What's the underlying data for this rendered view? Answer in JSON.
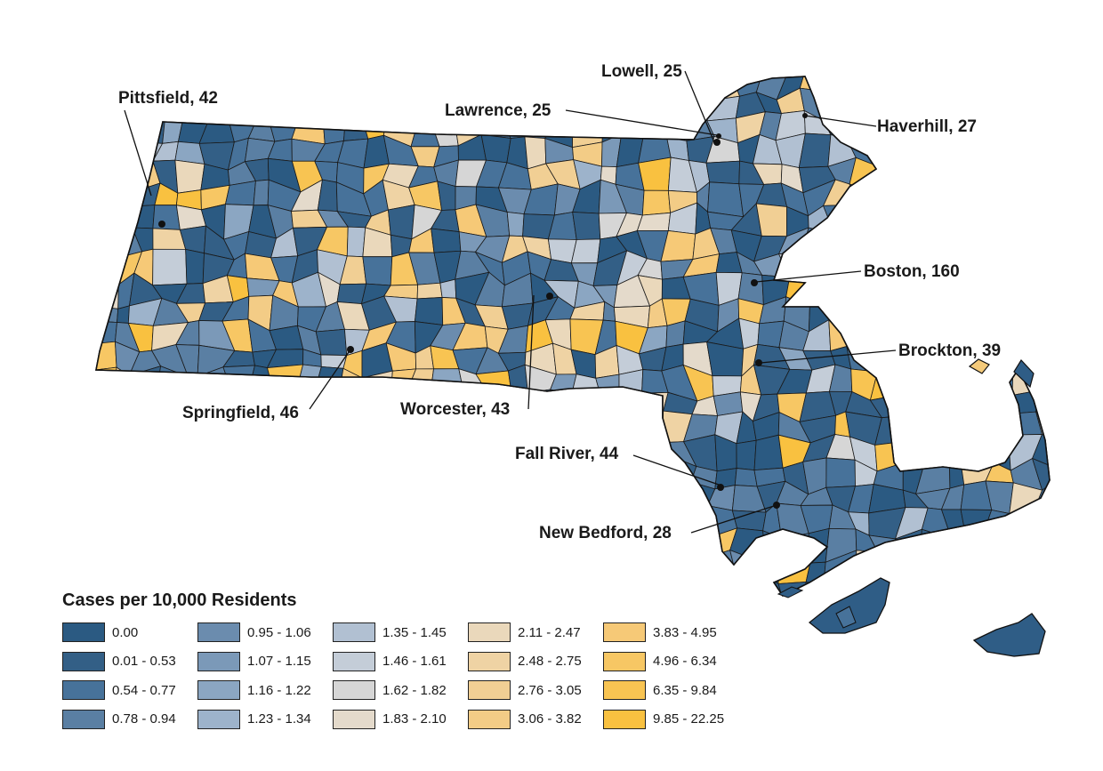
{
  "legend": {
    "title": "Cases per 10,000 Residents",
    "classes": [
      {
        "label": "0.00",
        "color": "#2b5a82"
      },
      {
        "label": "0.01 - 0.53",
        "color": "#335f86"
      },
      {
        "label": "0.54 - 0.77",
        "color": "#47729a"
      },
      {
        "label": "0.78 - 0.94",
        "color": "#5a7fa3"
      },
      {
        "label": "0.95 - 1.06",
        "color": "#6b8cae"
      },
      {
        "label": "1.07 - 1.15",
        "color": "#7b99b8"
      },
      {
        "label": "1.16 - 1.22",
        "color": "#8ba6c2"
      },
      {
        "label": "1.23 - 1.34",
        "color": "#9db3cb"
      },
      {
        "label": "1.35 - 1.45",
        "color": "#b1c0d2"
      },
      {
        "label": "1.46 - 1.61",
        "color": "#c4cdd8"
      },
      {
        "label": "1.62 - 1.82",
        "color": "#d6d6d6"
      },
      {
        "label": "1.83 - 2.10",
        "color": "#e4dacb"
      },
      {
        "label": "2.11 - 2.47",
        "color": "#ead8bb"
      },
      {
        "label": "2.48 - 2.75",
        "color": "#efd3a4"
      },
      {
        "label": "2.76 - 3.05",
        "color": "#f1cf94"
      },
      {
        "label": "3.06 - 3.82",
        "color": "#f3cc86"
      },
      {
        "label": "3.83 - 4.95",
        "color": "#f6c977"
      },
      {
        "label": "4.96 - 6.34",
        "color": "#f7c764"
      },
      {
        "label": "6.35 - 9.84",
        "color": "#f8c452"
      },
      {
        "label": "9.85 - 22.25",
        "color": "#f9c140"
      }
    ]
  },
  "cities": [
    {
      "id": "pittsfield",
      "label": "Pittsfield, 42"
    },
    {
      "id": "lowell",
      "label": "Lowell, 25"
    },
    {
      "id": "lawrence",
      "label": "Lawrence, 25"
    },
    {
      "id": "haverhill",
      "label": "Haverhill, 27"
    },
    {
      "id": "boston",
      "label": "Boston, 160"
    },
    {
      "id": "brockton",
      "label": "Brockton, 39"
    },
    {
      "id": "springfield",
      "label": "Springfield, 46"
    },
    {
      "id": "worcester",
      "label": "Worcester, 43"
    },
    {
      "id": "fall-river",
      "label": "Fall River, 44"
    },
    {
      "id": "new-bedford",
      "label": "New Bedford, 28"
    }
  ]
}
